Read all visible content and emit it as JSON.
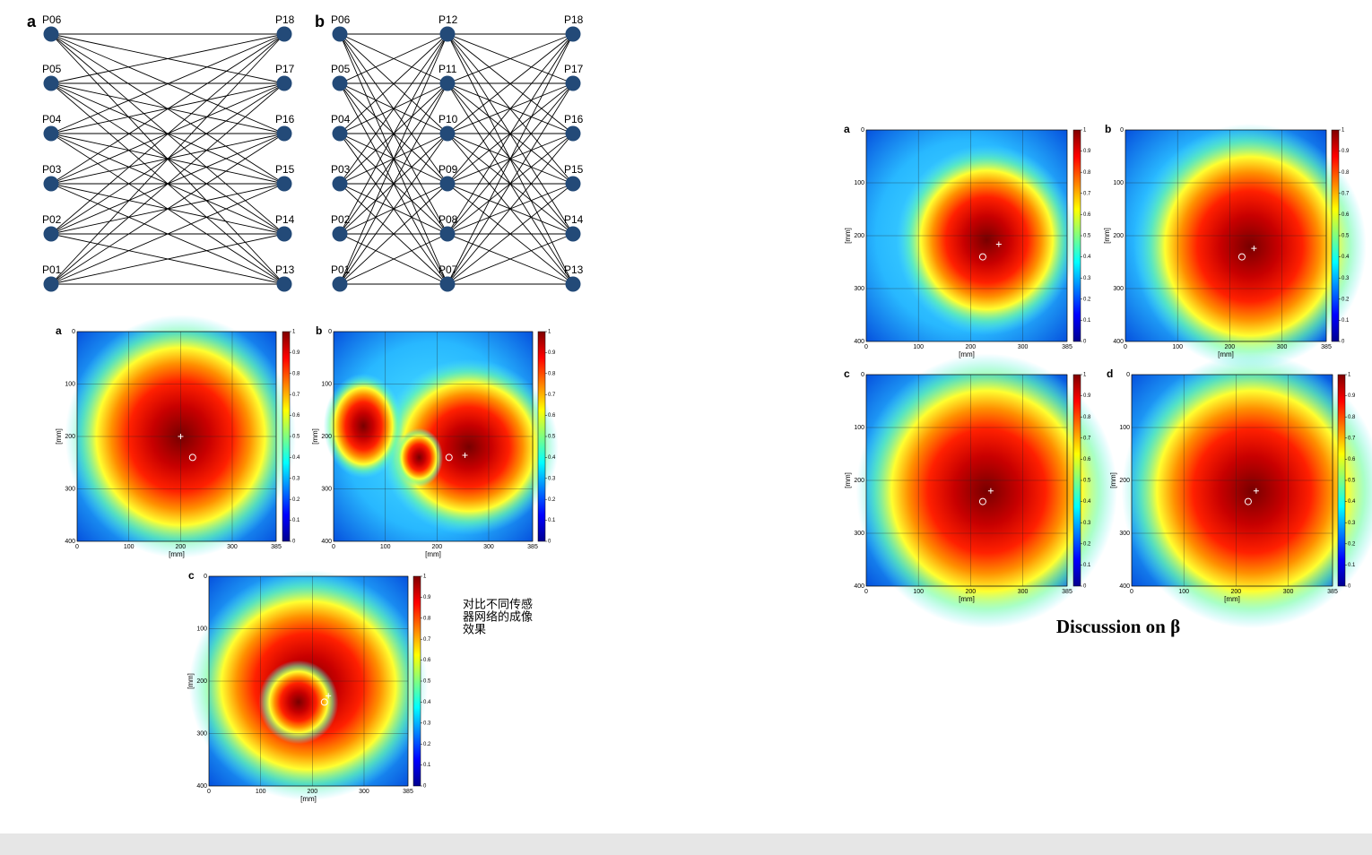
{
  "diagram_a": {
    "label": "a",
    "left": [
      "P06",
      "P05",
      "P04",
      "P03",
      "P02",
      "P01"
    ],
    "right": [
      "P18",
      "P17",
      "P16",
      "P15",
      "P14",
      "P13"
    ]
  },
  "diagram_b": {
    "label": "b",
    "left": [
      "P06",
      "P05",
      "P04",
      "P03",
      "P02",
      "P01"
    ],
    "middle": [
      "P12",
      "P11",
      "P10",
      "P09",
      "P08",
      "P07"
    ],
    "right": [
      "P18",
      "P17",
      "P16",
      "P15",
      "P14",
      "P13"
    ]
  },
  "comparison_maps": {
    "labels": [
      "a",
      "b",
      "c"
    ]
  },
  "beta_maps": {
    "labels": [
      "a",
      "b",
      "c",
      "d"
    ]
  },
  "map_axes": {
    "xticks": [
      0,
      100,
      200,
      300,
      385
    ],
    "yticks": [
      0,
      100,
      200,
      300,
      400
    ],
    "colorbar_ticks": [
      0,
      0.1,
      0.2,
      0.3,
      0.4,
      0.5,
      0.6,
      0.7,
      0.8,
      0.9,
      1
    ],
    "x_label": "[mm]",
    "y_label": "[mm]"
  },
  "note": [
    "对比不同传感",
    "器网络的成像",
    "效果"
  ],
  "discussion_title": "Discussion on β"
}
